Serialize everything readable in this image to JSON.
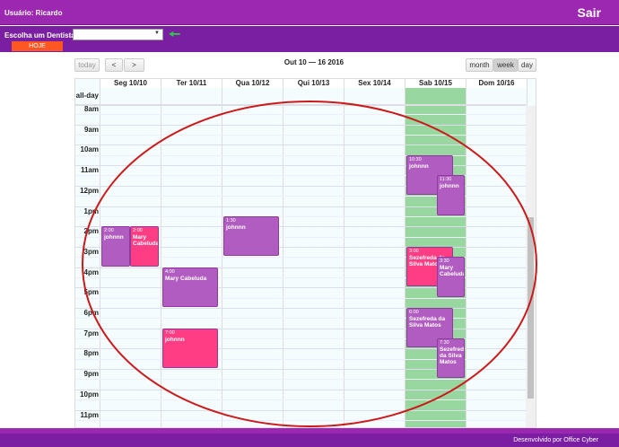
{
  "header": {
    "user": "Usuário: Ricardo",
    "logout": "Sair"
  },
  "toolbar": {
    "dentist_label": "Escolha um Dentista:",
    "dentist_value": "",
    "today_btn": "HOJE",
    "back_icon": "green-arrow-left"
  },
  "calendar": {
    "today": "today",
    "prev": "<",
    "next": ">",
    "title": "Out 10 — 16 2016",
    "views": [
      "month",
      "week",
      "day"
    ],
    "active_view": "week",
    "allday": "all-day",
    "days": [
      "Seg 10/10",
      "Ter 10/11",
      "Qua 10/12",
      "Qui 10/13",
      "Sex 10/14",
      "Sab 10/15",
      "Dom 10/16"
    ],
    "highlight_day": 5,
    "hours": [
      "8am",
      "9am",
      "10am",
      "11am",
      "12pm",
      "1pm",
      "2pm",
      "3pm",
      "4pm",
      "5pm",
      "6pm",
      "7pm",
      "8pm",
      "9pm",
      "10pm",
      "11pm"
    ],
    "events": [
      {
        "day": 0,
        "start": 14,
        "end": 16,
        "time": "2:00",
        "title": "johnnn",
        "color": "#b15cc0",
        "col": 0,
        "cols": 2
      },
      {
        "day": 0,
        "start": 14,
        "end": 16,
        "time": "2:00",
        "title": "Mary Cabeluda",
        "color": "#ff3d84",
        "col": 1,
        "cols": 2
      },
      {
        "day": 1,
        "start": 16,
        "end": 18,
        "time": "4:00",
        "title": "Mary Cabeluda",
        "color": "#b15cc0",
        "col": 0,
        "cols": 1
      },
      {
        "day": 1,
        "start": 19,
        "end": 21,
        "time": "7:00",
        "title": "johnnn",
        "color": "#ff3d84",
        "col": 0,
        "cols": 1
      },
      {
        "day": 2,
        "start": 13.5,
        "end": 15.5,
        "time": "1:30",
        "title": "johnnn",
        "color": "#b15cc0",
        "col": 0,
        "cols": 1
      },
      {
        "day": 5,
        "start": 10.5,
        "end": 12.5,
        "time": "10:30",
        "title": "johnnn",
        "color": "#b15cc0",
        "col": 0,
        "cols": 1
      },
      {
        "day": 5,
        "start": 11.5,
        "end": 13.5,
        "time": "11:30",
        "title": "johnnn",
        "color": "#b15cc0",
        "col": 1,
        "cols": 1
      },
      {
        "day": 5,
        "start": 15,
        "end": 17,
        "time": "3:00",
        "title": "Sezefreda da Silva Matos",
        "color": "#ff3d84",
        "col": 0,
        "cols": 1
      },
      {
        "day": 5,
        "start": 15.5,
        "end": 17.5,
        "time": "3:30",
        "title": "Mary Cabeluda",
        "color": "#b15cc0",
        "col": 1,
        "cols": 1
      },
      {
        "day": 5,
        "start": 18,
        "end": 20,
        "time": "6:00",
        "title": "Sezefreda da Silva Matos",
        "color": "#b15cc0",
        "col": 0,
        "cols": 1
      },
      {
        "day": 5,
        "start": 19.5,
        "end": 21.5,
        "time": "7:30",
        "title": "Sezefreda da Silva Matos",
        "color": "#b15cc0",
        "col": 1,
        "cols": 1
      }
    ]
  },
  "footer": {
    "credit": "Desenvolvido por Office Cyber"
  },
  "colors": {
    "header": "#9c27b0",
    "subheader": "#7b1fa2",
    "hoje": "#ff5722",
    "highlight": "#98d8a0",
    "annotation": "#cc1a1a"
  }
}
